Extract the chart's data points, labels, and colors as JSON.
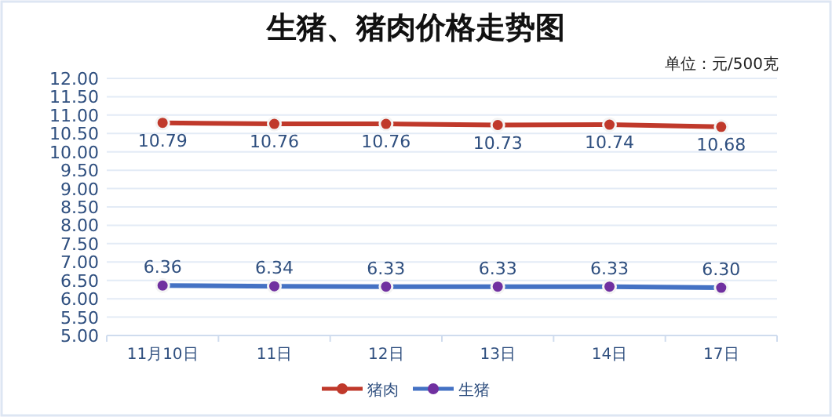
{
  "chart_data": {
    "type": "line",
    "title": "生猪、猪肉价格走势图",
    "annotations": [
      "单位：元/500克"
    ],
    "categories": [
      "11月10日",
      "11日",
      "12日",
      "13日",
      "14日",
      "17日"
    ],
    "series": [
      {
        "name": "猪肉",
        "color": "#c0392b",
        "colors": [
          "#c0392b",
          "#c0392b",
          "#c0392b",
          "#c0392b",
          "#c0392b",
          "#c0392b"
        ],
        "values": [
          10.79,
          10.76,
          10.76,
          10.73,
          10.74,
          10.68
        ]
      },
      {
        "name": "生猪",
        "color": "#4472c4",
        "colors": [
          "#7030a0",
          "#7030a0",
          "#7030a0",
          "#7030a0",
          "#7030a0",
          "#7030a0"
        ],
        "values": [
          6.36,
          6.34,
          6.33,
          6.33,
          6.33,
          6.3
        ],
        "value_labels": [
          "6.36",
          "6.34",
          "6.33",
          "6.33",
          "6.33",
          "6.30"
        ]
      }
    ],
    "ylim": [
      5,
      12
    ],
    "yticks": [
      {
        "value": 5,
        "label": "5.00"
      },
      {
        "value": 5.5,
        "label": "5.50"
      },
      {
        "value": 6,
        "label": "6.00"
      },
      {
        "value": 6.5,
        "label": "6.50"
      },
      {
        "value": 7,
        "label": "7.00"
      },
      {
        "value": 7.5,
        "label": "7.50"
      },
      {
        "value": 8,
        "label": "8.00"
      },
      {
        "value": 8.5,
        "label": "8.50"
      },
      {
        "value": 9,
        "label": "9.00"
      },
      {
        "value": 9.5,
        "label": "9.50"
      },
      {
        "value": 10,
        "label": "10.00"
      },
      {
        "value": 10.5,
        "label": "10.50"
      },
      {
        "value": 11,
        "label": "11.00"
      },
      {
        "value": 11.5,
        "label": "11.50"
      },
      {
        "value": 12,
        "label": "12.00"
      }
    ],
    "grid": "y",
    "legend": "bottom",
    "marker": "circle",
    "line_style": "solid",
    "data_labels": true
  }
}
